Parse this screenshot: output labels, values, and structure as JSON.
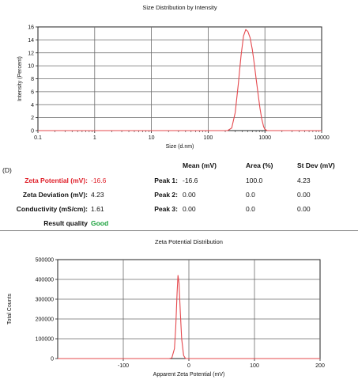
{
  "chart_data": [
    {
      "type": "line",
      "title": "Size Distribution by Intensity",
      "xlabel": "Size (d.nm)",
      "ylabel": "Intensity (Percent)",
      "xscale": "log",
      "xlim": [
        0.1,
        10000
      ],
      "ylim": [
        0,
        16
      ],
      "xticks": [
        "0.1",
        "1",
        "10",
        "100",
        "1000",
        "10000"
      ],
      "yticks": [
        "0",
        "2",
        "4",
        "6",
        "8",
        "10",
        "12",
        "14",
        "16"
      ],
      "grid": true,
      "line_color": "#e5484d",
      "x": [
        0.1,
        150,
        220,
        260,
        300,
        340,
        380,
        420,
        460,
        500,
        550,
        600,
        650,
        700,
        760,
        820,
        880,
        950,
        1000,
        1100,
        10000
      ],
      "y": [
        0,
        0,
        0,
        0.4,
        2.8,
        7.2,
        11.6,
        14.6,
        15.6,
        15.3,
        14.3,
        12.5,
        10.3,
        8.0,
        5.6,
        3.4,
        1.8,
        0.6,
        0.2,
        0,
        0
      ]
    },
    {
      "type": "line",
      "title": "Zeta Potential Distribution",
      "xlabel": "Apparent Zeta Potential (mV)",
      "ylabel": "Total Counts",
      "xlim": [
        -200,
        200
      ],
      "ylim": [
        0,
        500000
      ],
      "xticks": [
        "-100",
        "0",
        "100",
        "200"
      ],
      "yticks": [
        "0",
        "100000",
        "200000",
        "300000",
        "400000",
        "500000"
      ],
      "grid": true,
      "line_color": "#e5484d",
      "x": [
        -200,
        -40,
        -30,
        -26,
        -22,
        -20,
        -18,
        -16.6,
        -15,
        -13,
        -11,
        -8,
        -5,
        0,
        200
      ],
      "y": [
        0,
        0,
        0,
        3000,
        50000,
        160000,
        330000,
        420000,
        380000,
        230000,
        100000,
        15000,
        0,
        0,
        0
      ]
    }
  ],
  "results": {
    "panel_label": "(D)",
    "headers": {
      "mean": "Mean (mV)",
      "area": "Area (%)",
      "stdev": "St Dev (mV)"
    },
    "zeta_potential": {
      "label": "Zeta Potential (mV):",
      "value": "-16.6",
      "color": "#e0202a"
    },
    "zeta_deviation": {
      "label": "Zeta Deviation (mV):",
      "value": "4.23"
    },
    "conductivity": {
      "label": "Conductivity (mS/cm):",
      "value": "1.61"
    },
    "result_quality": {
      "label": "Result quality",
      "value": "Good",
      "color": "#18a03a"
    },
    "peaks": [
      {
        "label": "Peak 1:",
        "mean": "-16.6",
        "area": "100.0",
        "stdev": "4.23"
      },
      {
        "label": "Peak 2:",
        "mean": "0.00",
        "area": "0.0",
        "stdev": "0.00"
      },
      {
        "label": "Peak 3:",
        "mean": "0.00",
        "area": "0.0",
        "stdev": "0.00"
      }
    ]
  }
}
